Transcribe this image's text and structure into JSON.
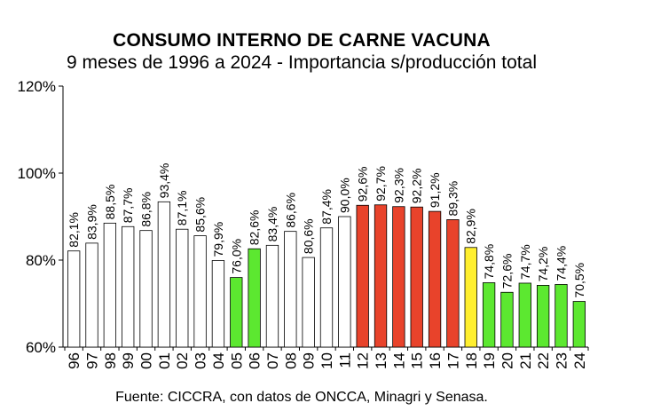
{
  "chart_data": {
    "type": "bar",
    "title": "CONSUMO INTERNO DE CARNE VACUNA",
    "subtitle": "9 meses de 1996 a 2024 - Importancia s/producción total",
    "source": "Fuente: CICCRA, con datos de ONCCA, Minagri y Senasa.",
    "categories": [
      "96",
      "97",
      "98",
      "99",
      "00",
      "01",
      "02",
      "03",
      "04",
      "05",
      "06",
      "07",
      "08",
      "09",
      "10",
      "11",
      "12",
      "13",
      "14",
      "15",
      "16",
      "17",
      "18",
      "19",
      "20",
      "21",
      "22",
      "23",
      "24"
    ],
    "values": [
      82.1,
      83.9,
      88.5,
      87.7,
      86.8,
      93.4,
      87.1,
      85.6,
      79.9,
      76.0,
      82.6,
      83.4,
      86.6,
      80.6,
      87.4,
      90.0,
      92.6,
      92.7,
      92.3,
      92.2,
      91.2,
      89.3,
      82.9,
      74.8,
      72.6,
      74.7,
      74.2,
      74.4,
      70.5
    ],
    "data_labels": [
      "82,1%",
      "83,9%",
      "88,5%",
      "87,7%",
      "86,8%",
      "93,4%",
      "87,1%",
      "85,6%",
      "79,9%",
      "76,0%",
      "82,6%",
      "83,4%",
      "86,6%",
      "80,6%",
      "87,4%",
      "90,0%",
      "92,6%",
      "92,7%",
      "92,3%",
      "92,2%",
      "91,2%",
      "89,3%",
      "82,9%",
      "74,8%",
      "72,6%",
      "74,7%",
      "74,2%",
      "74,4%",
      "70,5%"
    ],
    "bar_colors": [
      "#ffffff",
      "#ffffff",
      "#ffffff",
      "#ffffff",
      "#ffffff",
      "#ffffff",
      "#ffffff",
      "#ffffff",
      "#ffffff",
      "#5ce830",
      "#5ce830",
      "#ffffff",
      "#ffffff",
      "#ffffff",
      "#ffffff",
      "#ffffff",
      "#e8432b",
      "#e8432b",
      "#e8432b",
      "#e8432b",
      "#e8432b",
      "#e8432b",
      "#ffef2e",
      "#5ce830",
      "#5ce830",
      "#5ce830",
      "#5ce830",
      "#5ce830",
      "#5ce830"
    ],
    "ylim": [
      60,
      120
    ],
    "yticks": [
      60,
      80,
      100,
      120
    ],
    "ytick_labels": [
      "60%",
      "80%",
      "100%",
      "120%"
    ],
    "grid": false,
    "legend": "none"
  }
}
